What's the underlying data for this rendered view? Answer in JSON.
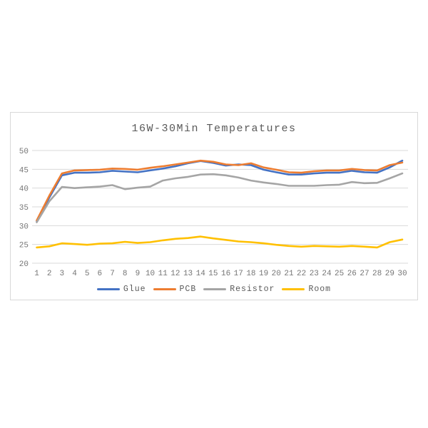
{
  "chart_data": {
    "type": "line",
    "title": "16W-30Min Temperatures",
    "xlabel": "",
    "ylabel": "",
    "x": [
      1,
      2,
      3,
      4,
      5,
      6,
      7,
      8,
      9,
      10,
      11,
      12,
      13,
      14,
      15,
      16,
      17,
      18,
      19,
      20,
      21,
      22,
      23,
      24,
      25,
      26,
      27,
      28,
      29,
      30
    ],
    "series": [
      {
        "name": "Glue",
        "color": "#4472C4",
        "values": [
          31.2,
          37.5,
          43.4,
          44.1,
          44.1,
          44.2,
          44.6,
          44.4,
          44.2,
          44.7,
          45.2,
          45.8,
          46.6,
          47.2,
          46.7,
          46.0,
          46.3,
          46.1,
          44.9,
          44.2,
          43.6,
          43.6,
          43.9,
          44.1,
          44.1,
          44.6,
          44.2,
          44.1,
          45.5,
          47.3
        ]
      },
      {
        "name": "PCB",
        "color": "#ED7D31",
        "values": [
          31.4,
          38.0,
          43.9,
          44.7,
          44.8,
          44.9,
          45.2,
          45.1,
          44.9,
          45.4,
          45.8,
          46.3,
          46.8,
          47.3,
          47.0,
          46.3,
          46.1,
          46.6,
          45.5,
          44.9,
          44.2,
          44.1,
          44.5,
          44.7,
          44.7,
          45.1,
          44.8,
          44.7,
          46.1,
          46.8
        ]
      },
      {
        "name": "Resistor",
        "color": "#A5A5A5",
        "values": [
          30.9,
          36.5,
          40.3,
          40.0,
          40.2,
          40.4,
          40.8,
          39.7,
          40.1,
          40.4,
          42.0,
          42.6,
          43.0,
          43.6,
          43.7,
          43.4,
          42.8,
          42.0,
          41.5,
          41.1,
          40.6,
          40.6,
          40.6,
          40.8,
          40.9,
          41.6,
          41.3,
          41.4,
          42.6,
          43.9
        ]
      },
      {
        "name": "Room",
        "color": "#FFC000",
        "values": [
          24.2,
          24.5,
          25.3,
          25.1,
          24.9,
          25.2,
          25.3,
          25.7,
          25.4,
          25.6,
          26.1,
          26.5,
          26.7,
          27.1,
          26.6,
          26.2,
          25.8,
          25.6,
          25.3,
          24.9,
          24.6,
          24.4,
          24.6,
          24.5,
          24.4,
          24.6,
          24.4,
          24.2,
          25.6,
          26.3
        ]
      }
    ],
    "ylim": [
      20,
      50
    ],
    "yticks": [
      20,
      25,
      30,
      35,
      40,
      45,
      50
    ],
    "grid": true,
    "legend_position": "bottom"
  },
  "style": {
    "gridline_color": "#d9d9d9",
    "border_color": "#d9d9d9",
    "title_color": "#595959",
    "axis_label_color": "#757575"
  }
}
